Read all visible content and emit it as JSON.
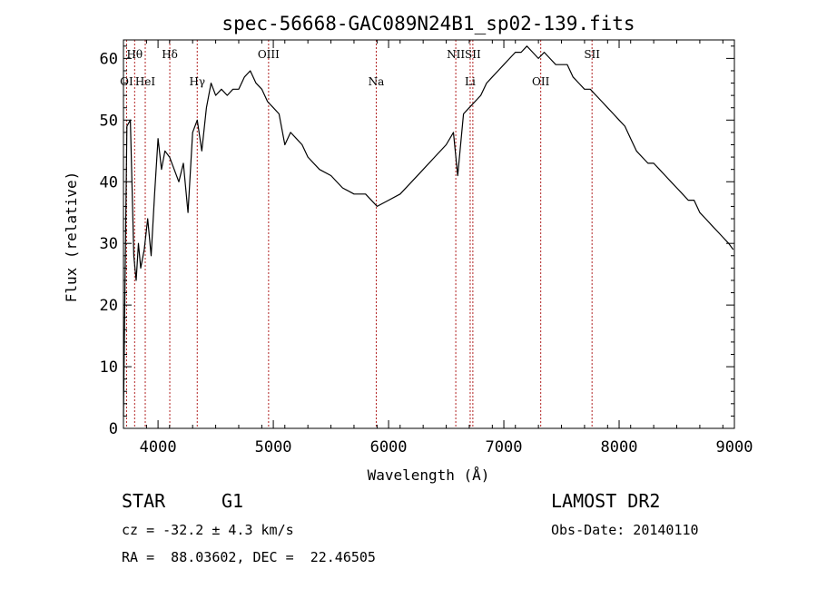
{
  "chart_data": {
    "type": "line",
    "title": "spec-56668-GAC089N24B1_sp02-139.fits",
    "xlabel": "Wavelength (Å)",
    "ylabel": "Flux (relative)",
    "xlim": [
      3700,
      9000
    ],
    "ylim": [
      0,
      63
    ],
    "xticks": [
      4000,
      5000,
      6000,
      7000,
      8000,
      9000
    ],
    "yticks": [
      0,
      10,
      20,
      30,
      40,
      50,
      60
    ],
    "grid": false,
    "series": [
      {
        "x": [
          3700,
          3730,
          3760,
          3790,
          3810,
          3830,
          3850,
          3880,
          3910,
          3940,
          3970,
          4000,
          4030,
          4060,
          4100,
          4140,
          4180,
          4220,
          4260,
          4300,
          4340,
          4380,
          4420,
          4460,
          4500,
          4550,
          4600,
          4650,
          4700,
          4750,
          4800,
          4850,
          4900,
          4950,
          5000,
          5050,
          5100,
          5150,
          5200,
          5250,
          5300,
          5400,
          5500,
          5600,
          5700,
          5800,
          5900,
          6000,
          6100,
          6200,
          6300,
          6400,
          6500,
          6563,
          6600,
          6650,
          6700,
          6750,
          6800,
          6850,
          6900,
          6950,
          7000,
          7050,
          7100,
          7150,
          7200,
          7250,
          7300,
          7350,
          7400,
          7450,
          7500,
          7550,
          7600,
          7650,
          7700,
          7750,
          7800,
          7850,
          7900,
          7950,
          8000,
          8050,
          8100,
          8150,
          8200,
          8250,
          8300,
          8350,
          8400,
          8450,
          8500,
          8550,
          8600,
          8650,
          8700,
          8750,
          8800,
          8850,
          8900,
          8950,
          8990
        ],
        "y": [
          2,
          49,
          50,
          28,
          24,
          30,
          26,
          29,
          34,
          28,
          38,
          47,
          42,
          45,
          44,
          42,
          40,
          43,
          35,
          48,
          50,
          45,
          52,
          56,
          54,
          55,
          54,
          55,
          55,
          57,
          58,
          56,
          55,
          53,
          52,
          51,
          46,
          48,
          47,
          46,
          44,
          42,
          41,
          39,
          38,
          38,
          36,
          37,
          38,
          40,
          42,
          44,
          46,
          48,
          41,
          51,
          52,
          53,
          54,
          56,
          57,
          58,
          59,
          60,
          61,
          61,
          62,
          61,
          60,
          61,
          60,
          59,
          59,
          59,
          57,
          56,
          55,
          55,
          54,
          53,
          52,
          51,
          50,
          49,
          47,
          45,
          44,
          43,
          43,
          42,
          41,
          40,
          39,
          38,
          37,
          37,
          35,
          34,
          33,
          32,
          31,
          30,
          29
        ]
      }
    ],
    "lines": [
      {
        "label": "OI",
        "x": 3727
      },
      {
        "label": "Hθ",
        "x": 3797
      },
      {
        "label": "HeI",
        "x": 3889
      },
      {
        "label": "Hδ",
        "x": 4102
      },
      {
        "label": "Hγ",
        "x": 4340
      },
      {
        "label": "OIII",
        "x": 4959
      },
      {
        "label": "Na",
        "x": 5893
      },
      {
        "label": "NII",
        "x": 6583
      },
      {
        "label": "Li",
        "x": 6708
      },
      {
        "label": "SII",
        "x": 6731
      },
      {
        "label": "OII",
        "x": 7320
      },
      {
        "label": "SII",
        "x": 7765
      }
    ],
    "line_color": "#b22222"
  },
  "info": {
    "object_class": "STAR",
    "subclass": "G1",
    "redshift": "cz = -32.2 ± 4.3 km/s",
    "coords": "RA =  88.03602, DEC =  22.46505",
    "survey": "LAMOST DR2",
    "obs_date": "Obs-Date: 20140110"
  }
}
